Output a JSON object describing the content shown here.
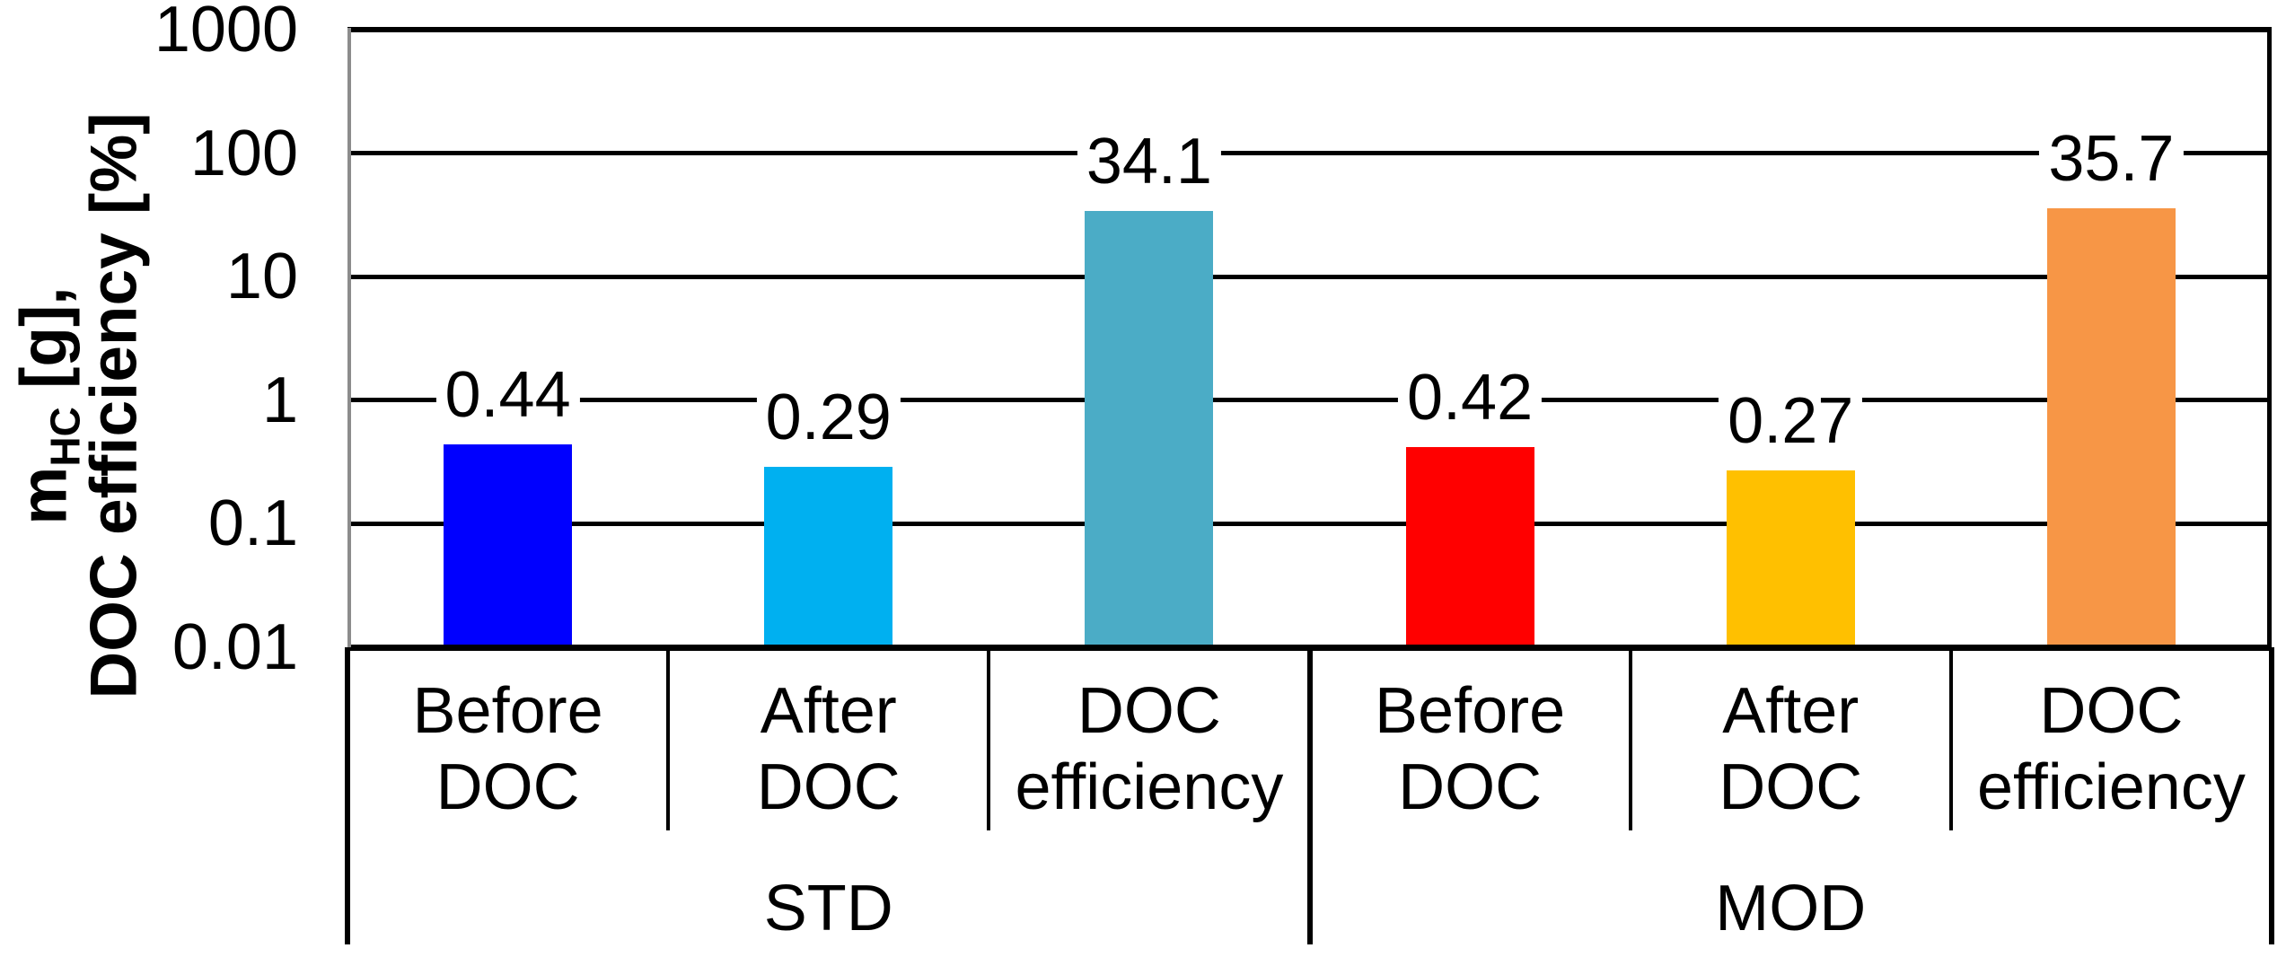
{
  "chart_data": {
    "type": "bar",
    "y_scale": "log",
    "ylim": [
      0.01,
      1000
    ],
    "grid": true,
    "ylabel": {
      "base": "m",
      "sub": "HC",
      "rest": " [g],",
      "line2": "DOC efficiency [%]"
    },
    "yticks": [
      {
        "label": "1000",
        "value": 1000
      },
      {
        "label": "100",
        "value": 100
      },
      {
        "label": "10",
        "value": 10
      },
      {
        "label": "1",
        "value": 1
      },
      {
        "label": "0.1",
        "value": 0.1
      },
      {
        "label": "0.01",
        "value": 0.01
      }
    ],
    "groups": [
      {
        "label": "STD",
        "categories": [
          {
            "lines": [
              "Before",
              "DOC"
            ],
            "value": 0.44,
            "label": "0.44",
            "color": "#0000FF"
          },
          {
            "lines": [
              "After",
              "DOC"
            ],
            "value": 0.29,
            "label": "0.29",
            "color": "#00B0F0"
          },
          {
            "lines": [
              "DOC",
              "efficiency"
            ],
            "value": 34.1,
            "label": "34.1",
            "color": "#4BACC6"
          }
        ]
      },
      {
        "label": "MOD",
        "categories": [
          {
            "lines": [
              "Before",
              "DOC"
            ],
            "value": 0.42,
            "label": "0.42",
            "color": "#FF0000"
          },
          {
            "lines": [
              "After",
              "DOC"
            ],
            "value": 0.27,
            "label": "0.27",
            "color": "#FFC000"
          },
          {
            "lines": [
              "DOC",
              "efficiency"
            ],
            "value": 35.7,
            "label": "35.7",
            "color": "#F79646"
          }
        ]
      }
    ],
    "colors": {
      "gridline": "#000000",
      "axis": "#000000",
      "y_axis_line": "#8C8C8C",
      "background": "#FFFFFF"
    }
  }
}
